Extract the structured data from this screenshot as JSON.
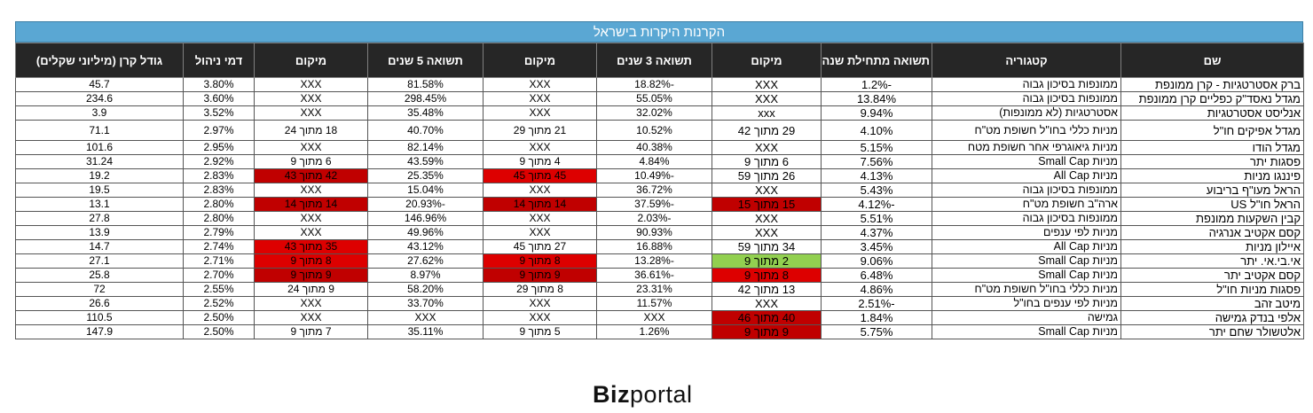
{
  "title": "הקרנות היקרות בישראל",
  "columns": [
    "שם",
    "קטגוריה",
    "תשואה מתחילת שנה",
    "מיקום",
    "תשואה 3 שנים",
    "מיקום",
    "תשואה 5 שנים",
    "מיקום",
    "דמי ניהול",
    "גודל קרן (מיליוני שקלים)"
  ],
  "rows": [
    {
      "name": "ברק אסטרטגיות - קרן ממונפת",
      "category": "ממונפות בסיכון גבוה",
      "ytd": "-1.2%",
      "rank_ytd": "XXX",
      "r3y": "-18.82%",
      "rank_3y": "XXX",
      "r5y": "81.58%",
      "rank_5y": "XXX",
      "fee": "3.80%",
      "size": "45.7"
    },
    {
      "name": "מגדל נאסד\"ק כפליים קרן ממונפת",
      "category": "ממונפות בסיכון גבוה",
      "ytd": "13.84%",
      "rank_ytd": "XXX",
      "r3y": "55.05%",
      "rank_3y": "XXX",
      "r5y": "298.45%",
      "rank_5y": "XXX",
      "fee": "3.60%",
      "size": "234.6"
    },
    {
      "name": "אנליסט אסטרטגיות",
      "category": "אסטרטגיות (לא ממונפות)",
      "ytd": "9.94%",
      "rank_ytd": "xxx",
      "r3y": "32.02%",
      "rank_3y": "XXX",
      "r5y": "35.48%",
      "rank_5y": "XXX",
      "fee": "3.52%",
      "size": "3.9"
    },
    {
      "name": "מגדל אפיקים חו\"ל",
      "category": "מניות כללי בחו\"ל חשופת מט\"ח",
      "ytd": "4.10%",
      "rank_ytd": "29 מתוך 42",
      "r3y": "10.52%",
      "rank_3y": "21 מתוך 29",
      "r5y": "40.70%",
      "rank_5y": "18 מתוך 24",
      "fee": "2.97%",
      "size": "71.1"
    },
    {
      "name": "מגדל הודו",
      "category": "מניות גיאוגרפי אחר חשופת מטח",
      "ytd": "5.15%",
      "rank_ytd": "XXX",
      "r3y": "40.38%",
      "rank_3y": "XXX",
      "r5y": "82.14%",
      "rank_5y": "XXX",
      "fee": "2.95%",
      "size": "101.6"
    },
    {
      "name": "פסגות יתר",
      "category": "מניות Small Cap",
      "ytd": "7.56%",
      "rank_ytd": "6 מתוך 9",
      "r3y": "4.84%",
      "rank_3y": "4 מתוך 9",
      "r5y": "43.59%",
      "rank_5y": "6 מתוך 9",
      "fee": "2.92%",
      "size": "31.24"
    },
    {
      "name": "פיננגו מניות",
      "category": "מניות All Cap",
      "ytd": "4.13%",
      "rank_ytd": "26 מתוך 59",
      "r3y": "-10.49%",
      "rank_3y": "45 מתוך 45",
      "r5y": "25.35%",
      "rank_5y": "42 מתוך 43",
      "fee": "2.83%",
      "size": "19.2"
    },
    {
      "name": "הראל מעו\"ף בריבוע",
      "category": "ממונפות בסיכון גבוה",
      "ytd": "5.43%",
      "rank_ytd": "XXX",
      "r3y": "36.72%",
      "rank_3y": "XXX",
      "r5y": "15.04%",
      "rank_5y": "XXX",
      "fee": "2.83%",
      "size": "19.5"
    },
    {
      "name": "הראל חו\"ל US",
      "category": "ארה\"ב חשופת מט\"ח",
      "ytd": "-4.12%",
      "rank_ytd": "15 מתוך 15",
      "r3y": "-37.59%",
      "rank_3y": "14 מתוך 14",
      "r5y": "-20.93%",
      "rank_5y": "14 מתוך 14",
      "fee": "2.80%",
      "size": "13.1"
    },
    {
      "name": "קבין השקעות ממונפת",
      "category": "ממונפות בסיכון גבוה",
      "ytd": "5.51%",
      "rank_ytd": "XXX",
      "r3y": "-2.03%",
      "rank_3y": "XXX",
      "r5y": "146.96%",
      "rank_5y": "XXX",
      "fee": "2.80%",
      "size": "27.8"
    },
    {
      "name": "קסם אקטיב אנרגיה",
      "category": "מניות לפי ענפים",
      "ytd": "4.37%",
      "rank_ytd": "XXX",
      "r3y": "90.93%",
      "rank_3y": "XXX",
      "r5y": "49.96%",
      "rank_5y": "XXX",
      "fee": "2.79%",
      "size": "13.9"
    },
    {
      "name": "איילון מניות",
      "category": "מניות All Cap",
      "ytd": "3.45%",
      "rank_ytd": "34 מתוך 59",
      "r3y": "16.88%",
      "rank_3y": "27 מתוך 45",
      "r5y": "43.12%",
      "rank_5y": "35 מתוך 43",
      "fee": "2.74%",
      "size": "14.7"
    },
    {
      "name": "אי.בי.אי. יתר",
      "category": "מניות Small Cap",
      "ytd": "9.06%",
      "rank_ytd": "2 מתוך 9",
      "r3y": "-13.28%",
      "rank_3y": "8 מתוך 9",
      "r5y": "27.62%",
      "rank_5y": "8 מתוך 9",
      "fee": "2.71%",
      "size": "27.1"
    },
    {
      "name": "קסם אקטיב יתר",
      "category": "מניות Small Cap",
      "ytd": "6.48%",
      "rank_ytd": "8 מתוך 9",
      "r3y": "-36.61%",
      "rank_3y": "9 מתוך 9",
      "r5y": "8.97%",
      "rank_5y": "9 מתוך 9",
      "fee": "2.70%",
      "size": "25.8"
    },
    {
      "name": "פסגות מניות חו\"ל",
      "category": "מניות כללי בחו\"ל חשופת מט\"ח",
      "ytd": "4.86%",
      "rank_ytd": "13 מתוך 42",
      "r3y": "23.31%",
      "rank_3y": "8 מתוך 29",
      "r5y": "58.20%",
      "rank_5y": "9 מתוך 24",
      "fee": "2.55%",
      "size": "72"
    },
    {
      "name": "מיטב זהב",
      "category": "מניות לפי ענפים בחו\"ל",
      "ytd": "-2.51%",
      "rank_ytd": "XXX",
      "r3y": "11.57%",
      "rank_3y": "XXX",
      "r5y": "33.70%",
      "rank_5y": "XXX",
      "fee": "2.52%",
      "size": "26.6"
    },
    {
      "name": "אלפי בנדק גמישה",
      "category": "גמישה",
      "ytd": "1.84%",
      "rank_ytd": "40 מתוך 46",
      "r3y": "XXX",
      "rank_3y": "XXX",
      "r5y": "XXX",
      "rank_5y": "XXX",
      "fee": "2.50%",
      "size": "110.5"
    },
    {
      "name": "אלטשולר שחם יתר",
      "category": "מניות Small Cap",
      "ytd": "5.75%",
      "rank_ytd": "9 מתוך 9",
      "r3y": "1.26%",
      "rank_3y": "5 מתוך 9",
      "r5y": "35.11%",
      "rank_5y": "7 מתוך 9",
      "fee": "2.50%",
      "size": "147.9"
    }
  ],
  "highlight_colors": {
    "red": "#dd0000",
    "dark_red": "#c00000",
    "green": "#92d050"
  },
  "logo": {
    "bold": "Biz",
    "light": "portal"
  }
}
